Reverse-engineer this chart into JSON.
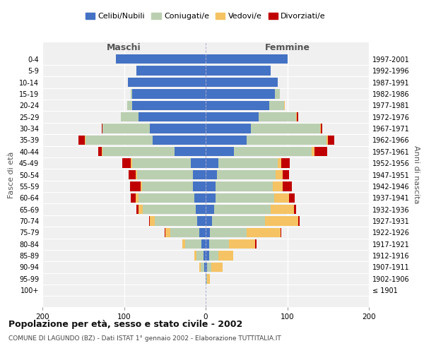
{
  "age_groups": [
    "100+",
    "95-99",
    "90-94",
    "85-89",
    "80-84",
    "75-79",
    "70-74",
    "65-69",
    "60-64",
    "55-59",
    "50-54",
    "45-49",
    "40-44",
    "35-39",
    "30-34",
    "25-29",
    "20-24",
    "15-19",
    "10-14",
    "5-9",
    "0-4"
  ],
  "birth_years": [
    "≤ 1901",
    "1902-1906",
    "1907-1911",
    "1912-1916",
    "1917-1921",
    "1922-1926",
    "1927-1931",
    "1932-1936",
    "1937-1941",
    "1942-1946",
    "1947-1951",
    "1952-1956",
    "1957-1961",
    "1962-1966",
    "1967-1971",
    "1972-1976",
    "1977-1981",
    "1982-1986",
    "1987-1991",
    "1992-1996",
    "1997-2001"
  ],
  "males": {
    "celibinubili": [
      0,
      0,
      2,
      3,
      5,
      8,
      10,
      12,
      14,
      16,
      16,
      18,
      38,
      65,
      68,
      82,
      90,
      90,
      95,
      85,
      110
    ],
    "coniugati": [
      0,
      0,
      4,
      8,
      20,
      35,
      52,
      65,
      68,
      62,
      68,
      72,
      88,
      82,
      58,
      22,
      6,
      2,
      0,
      0,
      0
    ],
    "vedovi": [
      0,
      0,
      2,
      3,
      4,
      6,
      6,
      5,
      4,
      2,
      2,
      2,
      1,
      1,
      0,
      0,
      0,
      0,
      0,
      0,
      0
    ],
    "divorziati": [
      0,
      0,
      0,
      0,
      0,
      1,
      1,
      3,
      6,
      13,
      8,
      10,
      5,
      8,
      1,
      0,
      0,
      0,
      0,
      0,
      0
    ]
  },
  "females": {
    "celibinubili": [
      0,
      1,
      2,
      4,
      4,
      5,
      8,
      10,
      12,
      12,
      14,
      16,
      35,
      50,
      55,
      65,
      78,
      85,
      88,
      80,
      100
    ],
    "coniugate": [
      0,
      1,
      5,
      12,
      25,
      45,
      65,
      70,
      72,
      70,
      72,
      72,
      95,
      98,
      85,
      46,
      18,
      6,
      0,
      0,
      0
    ],
    "vedove": [
      0,
      3,
      14,
      18,
      32,
      42,
      40,
      28,
      18,
      12,
      8,
      5,
      3,
      2,
      1,
      1,
      1,
      0,
      0,
      0,
      0
    ],
    "divorziate": [
      0,
      0,
      0,
      0,
      1,
      1,
      2,
      3,
      7,
      12,
      8,
      10,
      16,
      8,
      2,
      1,
      0,
      0,
      0,
      0,
      0
    ]
  },
  "colors": {
    "celibinubili": "#4472C4",
    "coniugati": "#BACFB0",
    "vedovi": "#F5C363",
    "divorziati": "#C00000"
  },
  "title": "Popolazione per età, sesso e stato civile - 2002",
  "subtitle": "COMUNE DI LAGUNDO (BZ) - Dati ISTAT 1° gennaio 2002 - Elaborazione TUTTITALIA.IT",
  "ylabel_left": "Fasce di età",
  "ylabel_right": "Anni di nascita",
  "xlabel_left": "Maschi",
  "xlabel_right": "Femmine",
  "legend_labels": [
    "Celibi/Nubili",
    "Coniugati/e",
    "Vedovi/e",
    "Divorziati/e"
  ],
  "xlim": 200,
  "bg_color": "#FFFFFF",
  "plot_bg": "#F0F0F0"
}
